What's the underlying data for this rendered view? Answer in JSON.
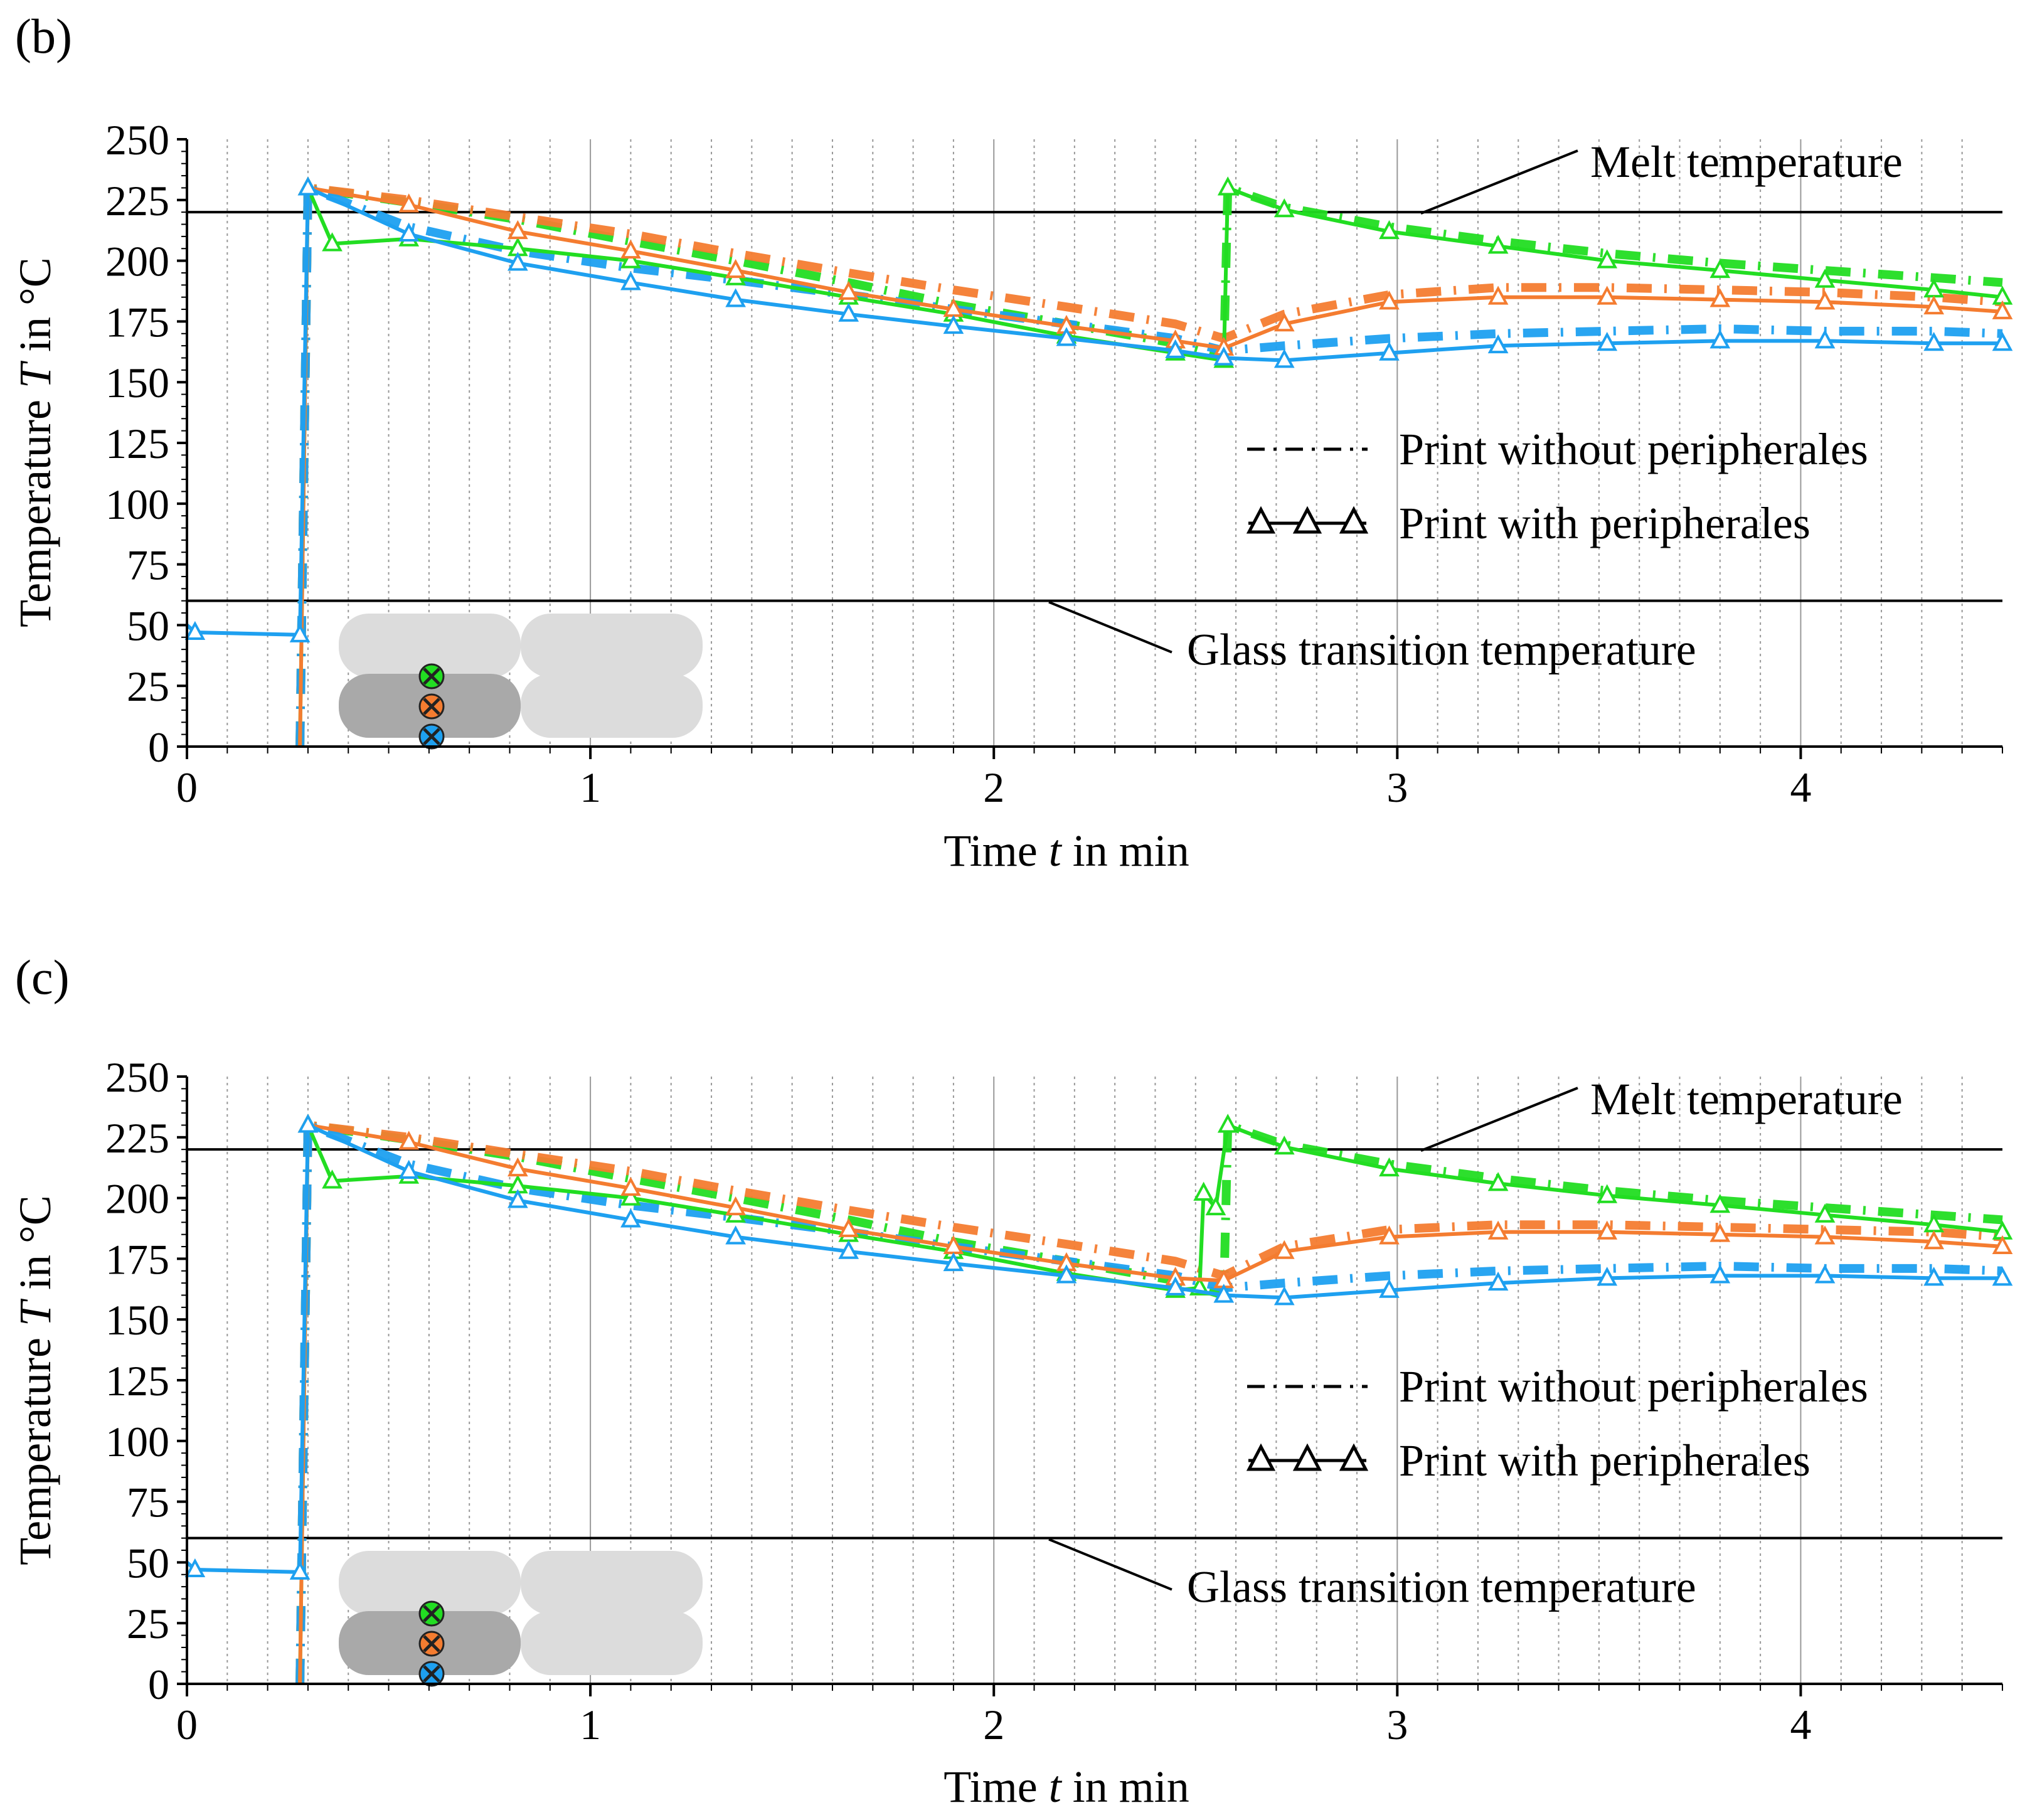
{
  "panels": [
    {
      "label": "(b)",
      "xlabel_pre": "Time ",
      "xlabel_var": "t",
      "xlabel_post": " in min",
      "ylabel_pre": "Temperature ",
      "ylabel_var": "T",
      "ylabel_post": " in °C",
      "melt_label": "Melt temperature",
      "glass_label": "Glass transition temperature",
      "legend_without": "Print without peripherales",
      "legend_with": "Print with peripherales"
    },
    {
      "label": "(c)",
      "xlabel_pre": "Time ",
      "xlabel_var": "t",
      "xlabel_post": " in min",
      "ylabel_pre": "Temperature ",
      "ylabel_var": "T",
      "ylabel_post": " in °C",
      "melt_label": "Melt temperature",
      "glass_label": "Glass transition temperature",
      "legend_without": "Print without peripherales",
      "legend_with": "Print with peripherales"
    }
  ],
  "colors": {
    "green": "#22dd22",
    "orange": "#f47c30",
    "blue": "#1ea0f0",
    "black": "#000000",
    "grid": "#999999"
  },
  "chart_data": [
    {
      "type": "line",
      "title": "(b)",
      "xlabel": "Time t in min",
      "ylabel": "Temperature T in °C",
      "xlim": [
        0,
        4.5
      ],
      "ylim": [
        0,
        250
      ],
      "x_ticks": [
        "0",
        "1",
        "2",
        "3",
        "4"
      ],
      "y_ticks": [
        "0",
        "25",
        "50",
        "75",
        "100",
        "125",
        "150",
        "175",
        "200",
        "225",
        "250"
      ],
      "grid": true,
      "reference_lines": [
        {
          "name": "Melt temperature",
          "y": 220
        },
        {
          "name": "Glass transition temperature",
          "y": 60
        }
      ],
      "legend": [
        "Print without peripherales",
        "Print with peripherales"
      ],
      "legend_position": "right",
      "series": [
        {
          "color": "green",
          "style": "with",
          "x": [
            0.28,
            0.3,
            0.36,
            0.55,
            0.82,
            1.1,
            1.36,
            1.64,
            1.9,
            2.18,
            2.45,
            2.57,
            2.58,
            2.72,
            2.98,
            3.25,
            3.52,
            3.8,
            4.06,
            4.33,
            4.5
          ],
          "y": [
            0,
            230,
            207,
            209,
            205,
            200,
            193,
            185,
            178,
            169,
            162,
            159,
            230,
            221,
            212,
            206,
            200,
            196,
            192,
            188,
            185
          ]
        },
        {
          "color": "green",
          "style": "without",
          "x": [
            0.28,
            0.3,
            0.55,
            0.82,
            1.1,
            1.36,
            1.64,
            1.9,
            2.18,
            2.45,
            2.57,
            2.58,
            2.72,
            2.98,
            3.25,
            3.52,
            3.8,
            4.06,
            4.33,
            4.5
          ],
          "y": [
            0,
            230,
            224,
            217,
            208,
            200,
            191,
            182,
            174,
            166,
            160,
            230,
            222,
            214,
            208,
            203,
            199,
            196,
            193,
            191
          ]
        },
        {
          "color": "orange",
          "style": "with",
          "x": [
            0.28,
            0.3,
            0.55,
            0.82,
            1.1,
            1.36,
            1.64,
            1.9,
            2.18,
            2.45,
            2.57,
            2.72,
            2.98,
            3.25,
            3.52,
            3.8,
            4.06,
            4.33,
            4.5
          ],
          "y": [
            0,
            230,
            223,
            212,
            204,
            196,
            187,
            180,
            173,
            167,
            164,
            174,
            183,
            185,
            185,
            184,
            183,
            181,
            179
          ]
        },
        {
          "color": "orange",
          "style": "without",
          "x": [
            0.28,
            0.3,
            0.55,
            0.82,
            1.1,
            1.36,
            1.64,
            1.9,
            2.18,
            2.45,
            2.57,
            2.72,
            2.98,
            3.25,
            3.52,
            3.8,
            4.06,
            4.33,
            4.5
          ],
          "y": [
            0,
            230,
            225,
            218,
            211,
            203,
            195,
            188,
            181,
            174,
            168,
            178,
            186,
            189,
            189,
            188,
            187,
            185,
            183
          ]
        },
        {
          "color": "blue",
          "style": "with",
          "x": [
            0,
            0.02,
            0.28,
            0.3,
            0.55,
            0.82,
            1.1,
            1.36,
            1.64,
            1.9,
            2.18,
            2.45,
            2.57,
            2.72,
            2.98,
            3.25,
            3.52,
            3.8,
            4.06,
            4.33,
            4.5
          ],
          "y": [
            50,
            47,
            46,
            230,
            211,
            199,
            191,
            184,
            178,
            173,
            168,
            163,
            160,
            159,
            162,
            165,
            166,
            167,
            167,
            166,
            166
          ]
        },
        {
          "color": "blue",
          "style": "without",
          "x": [
            0.28,
            0.3,
            0.55,
            0.82,
            1.1,
            1.36,
            1.64,
            1.9,
            2.18,
            2.45,
            2.57,
            2.72,
            2.98,
            3.25,
            3.52,
            3.8,
            4.06,
            4.33,
            4.5
          ],
          "y": [
            0,
            230,
            214,
            204,
            197,
            192,
            186,
            180,
            174,
            168,
            163,
            165,
            168,
            170,
            171,
            172,
            171,
            171,
            170
          ]
        }
      ]
    },
    {
      "type": "line",
      "title": "(c)",
      "xlabel": "Time t in min",
      "ylabel": "Temperature T in °C",
      "xlim": [
        0,
        4.5
      ],
      "ylim": [
        0,
        250
      ],
      "x_ticks": [
        "0",
        "1",
        "2",
        "3",
        "4"
      ],
      "y_ticks": [
        "0",
        "25",
        "50",
        "75",
        "100",
        "125",
        "150",
        "175",
        "200",
        "225",
        "250"
      ],
      "grid": true,
      "reference_lines": [
        {
          "name": "Melt temperature",
          "y": 220
        },
        {
          "name": "Glass transition temperature",
          "y": 60
        }
      ],
      "legend": [
        "Print without peripherales",
        "Print with peripherales"
      ],
      "legend_position": "right",
      "series": [
        {
          "color": "green",
          "style": "with",
          "x": [
            0.28,
            0.3,
            0.36,
            0.55,
            0.82,
            1.1,
            1.36,
            1.64,
            1.9,
            2.18,
            2.45,
            2.51,
            2.52,
            2.55,
            2.58,
            2.72,
            2.98,
            3.25,
            3.52,
            3.8,
            4.06,
            4.33,
            4.5
          ],
          "y": [
            0,
            230,
            207,
            209,
            205,
            200,
            193,
            185,
            178,
            169,
            162,
            163,
            202,
            196,
            230,
            221,
            212,
            206,
            201,
            197,
            193,
            189,
            186
          ]
        },
        {
          "color": "green",
          "style": "without",
          "x": [
            0.28,
            0.3,
            0.55,
            0.82,
            1.1,
            1.36,
            1.64,
            1.9,
            2.18,
            2.45,
            2.57,
            2.58,
            2.72,
            2.98,
            3.25,
            3.52,
            3.8,
            4.06,
            4.33,
            4.5
          ],
          "y": [
            0,
            230,
            224,
            217,
            208,
            200,
            191,
            182,
            174,
            166,
            160,
            230,
            222,
            214,
            208,
            203,
            199,
            196,
            193,
            191
          ]
        },
        {
          "color": "orange",
          "style": "with",
          "x": [
            0.28,
            0.3,
            0.55,
            0.82,
            1.1,
            1.36,
            1.64,
            1.9,
            2.18,
            2.45,
            2.57,
            2.72,
            2.98,
            3.25,
            3.52,
            3.8,
            4.06,
            4.33,
            4.5
          ],
          "y": [
            0,
            230,
            223,
            212,
            204,
            196,
            187,
            180,
            173,
            167,
            166,
            178,
            184,
            186,
            186,
            185,
            184,
            182,
            180
          ]
        },
        {
          "color": "orange",
          "style": "without",
          "x": [
            0.28,
            0.3,
            0.55,
            0.82,
            1.1,
            1.36,
            1.64,
            1.9,
            2.18,
            2.45,
            2.57,
            2.72,
            2.98,
            3.25,
            3.52,
            3.8,
            4.06,
            4.33,
            4.5
          ],
          "y": [
            0,
            230,
            225,
            218,
            211,
            203,
            195,
            188,
            181,
            174,
            168,
            180,
            187,
            189,
            189,
            188,
            187,
            186,
            184
          ]
        },
        {
          "color": "blue",
          "style": "with",
          "x": [
            0,
            0.02,
            0.28,
            0.3,
            0.55,
            0.82,
            1.1,
            1.36,
            1.64,
            1.9,
            2.18,
            2.45,
            2.57,
            2.72,
            2.98,
            3.25,
            3.52,
            3.8,
            4.06,
            4.33,
            4.5
          ],
          "y": [
            50,
            47,
            46,
            230,
            211,
            199,
            191,
            184,
            178,
            173,
            168,
            163,
            160,
            159,
            162,
            165,
            167,
            168,
            168,
            167,
            167
          ]
        },
        {
          "color": "blue",
          "style": "without",
          "x": [
            0.28,
            0.3,
            0.55,
            0.82,
            1.1,
            1.36,
            1.64,
            1.9,
            2.18,
            2.45,
            2.57,
            2.72,
            2.98,
            3.25,
            3.52,
            3.8,
            4.06,
            4.33,
            4.5
          ],
          "y": [
            0,
            230,
            214,
            204,
            197,
            192,
            186,
            180,
            174,
            168,
            163,
            165,
            168,
            170,
            171,
            172,
            171,
            171,
            170
          ]
        }
      ]
    }
  ]
}
